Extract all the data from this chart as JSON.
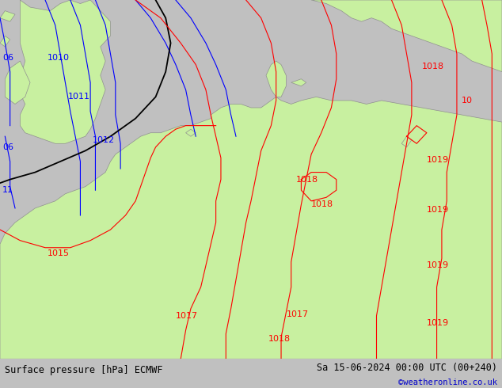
{
  "title_left": "Surface pressure [hPa] ECMWF",
  "title_right": "Sa 15-06-2024 00:00 UTC (00+240)",
  "credit": "©weatheronline.co.uk",
  "bg_color": "#c0c0c0",
  "land_color": "#c8f0a0",
  "border_color": "#909090",
  "footer_bg": "#e0e0e0",
  "footer_text_color": "#000000",
  "credit_color": "#0000cc",
  "figsize": [
    6.34,
    4.9
  ],
  "dpi": 100
}
